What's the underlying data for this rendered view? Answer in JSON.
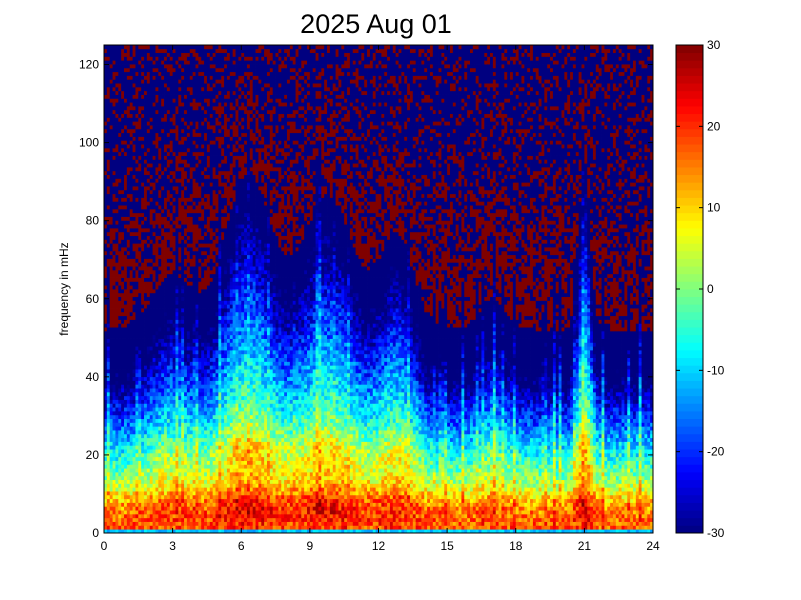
{
  "chart_data": {
    "type": "heatmap",
    "title": "2025 Aug 01",
    "xlabel": "",
    "ylabel": "frequency in mHz",
    "xlim": [
      0,
      24
    ],
    "ylim": [
      0,
      125
    ],
    "x_ticks": [
      0,
      3,
      6,
      9,
      12,
      15,
      18,
      21,
      24
    ],
    "y_ticks": [
      0,
      20,
      40,
      60,
      80,
      100,
      120
    ],
    "colorbar": {
      "colormap": "jet",
      "clim": [
        -30,
        30
      ],
      "ticks": [
        -30,
        -20,
        -10,
        0,
        10,
        20,
        30
      ]
    },
    "grid": false,
    "grid_resolution": {
      "time_bins": 192,
      "freq_bins": 128
    },
    "features": {
      "low_frequency_band_peak_mHz": [
        3,
        10
      ],
      "secondary_band_peak_mHz": [
        18,
        25
      ],
      "high_activity_periods_hours": [
        [
          4.5,
          7.5
        ],
        [
          11.5,
          13.5
        ],
        [
          20.5,
          21.5
        ]
      ],
      "quiet_high_frequency_periods_hours": [
        [
          0,
          1
        ],
        [
          13.5,
          20.5
        ],
        [
          22.5,
          24
        ]
      ]
    }
  }
}
